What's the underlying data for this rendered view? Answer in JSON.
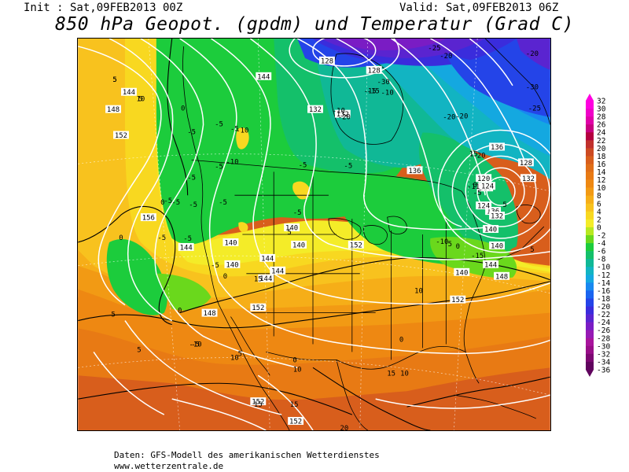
{
  "header": {
    "init": "Init : Sat,09FEB2013 00Z",
    "valid": "Valid: Sat,09FEB2013 06Z",
    "title": "850 hPa Geopot. (gpdm) und Temperatur (Grad C)"
  },
  "footer": {
    "source": "Daten: GFS-Modell des amerikanischen Wetterdienstes",
    "url": "www.wetterzentrale.de"
  },
  "legend": {
    "levels": [
      "32",
      "30",
      "28",
      "26",
      "24",
      "22",
      "20",
      "18",
      "16",
      "14",
      "12",
      "10",
      "8",
      "6",
      "4",
      "2",
      "0",
      "-2",
      "-4",
      "-6",
      "-8",
      "-10",
      "-12",
      "-14",
      "-16",
      "-18",
      "-20",
      "-22",
      "-24",
      "-26",
      "-28",
      "-30",
      "-32",
      "-34",
      "-36"
    ],
    "colors": [
      "#ff00e0",
      "#f000c8",
      "#e000a8",
      "#c80080",
      "#b40040",
      "#c0302c",
      "#cc4a22",
      "#d85e1c",
      "#e06e18",
      "#e87a14",
      "#ee8812",
      "#f29a14",
      "#f6ae18",
      "#f8c21e",
      "#f8d820",
      "#f4ec28",
      "#b8e820",
      "#6ad81c",
      "#1ccc3c",
      "#14c06a",
      "#10b896",
      "#12b4c2",
      "#14a8e0",
      "#1888f0",
      "#1a64f0",
      "#2444e8",
      "#3a2cdc",
      "#5a24d0",
      "#7a1cc4",
      "#961ab4",
      "#a8149c",
      "#980e88",
      "#7c0872",
      "#60045e"
    ]
  },
  "map_labels": {
    "geopotential": [
      "144",
      "148",
      "152",
      "156",
      "144",
      "140",
      "140",
      "144",
      "140",
      "140",
      "144",
      "144",
      "152",
      "132",
      "136",
      "140",
      "128",
      "132",
      "136",
      "140",
      "144",
      "148",
      "140",
      "152",
      "136",
      "132",
      "128",
      "124",
      "120",
      "116",
      "148",
      "152",
      "144",
      "132",
      "128",
      "124",
      "152",
      "152"
    ],
    "temperature": [
      "5",
      "5",
      "0",
      "-5",
      "-5",
      "-5",
      "-5",
      "-10",
      "-10",
      "-5",
      "-5",
      "-5",
      "-5",
      "-5",
      "-5",
      "-5",
      "0",
      "-5",
      "0",
      "0",
      "0",
      "5",
      "5",
      "5",
      "-5",
      "-10",
      "-15",
      "-20",
      "-20",
      "-30",
      "-25",
      "-20",
      "-25",
      "-20",
      "-30",
      "-15",
      "-20",
      "-10",
      "-10",
      "-5",
      "5",
      "0",
      "0",
      "-5",
      "0",
      "5",
      "10",
      "10",
      "10",
      "15",
      "15",
      "15",
      "20",
      "20",
      "15",
      "15",
      "-5",
      "5",
      "-15",
      "-5",
      "0",
      "-11",
      "10",
      "5",
      "-10",
      "5",
      "10"
    ]
  }
}
